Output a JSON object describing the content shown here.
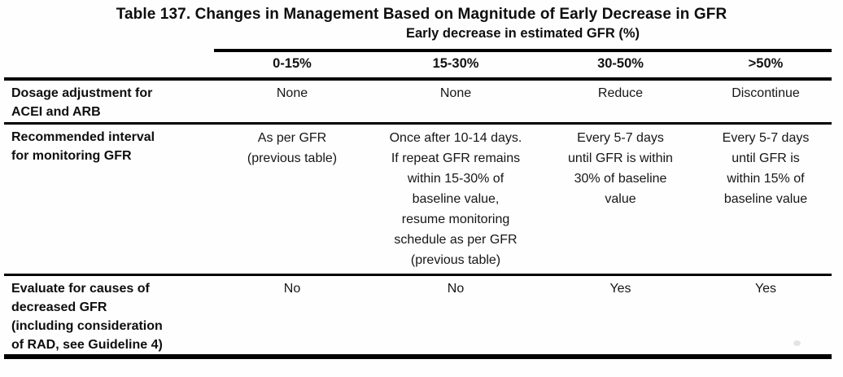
{
  "table": {
    "title": "Table 137. Changes in Management Based on Magnitude of Early Decrease in GFR",
    "column_group_header": "Early decrease in estimated GFR (%)",
    "columns": [
      "0-15%",
      "15-30%",
      "30-50%",
      ">50%"
    ],
    "rows": [
      {
        "label": "Dosage adjustment for\nACEI and ARB",
        "values": [
          "None",
          "None",
          "Reduce",
          "Discontinue"
        ]
      },
      {
        "label": "Recommended interval\nfor monitoring GFR",
        "values": [
          "As per GFR\n(previous table)",
          "Once after 10-14 days.\nIf repeat GFR remains\nwithin 15-30% of\nbaseline value,\nresume monitoring\nschedule as per GFR\n(previous table)",
          "Every 5-7 days\nuntil GFR is within\n30% of baseline\nvalue",
          "Every 5-7 days\nuntil GFR is\nwithin 15% of\nbaseline value"
        ]
      },
      {
        "label": "Evaluate for causes of\ndecreased GFR\n(including consideration\nof RAD, see Guideline 4)",
        "values": [
          "No",
          "No",
          "Yes",
          "Yes"
        ]
      }
    ],
    "colors": {
      "text": "#121212",
      "rule": "#000000",
      "background": "#ffffff"
    }
  }
}
